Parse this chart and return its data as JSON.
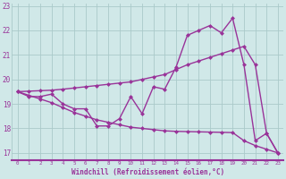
{
  "xlabel": "Windchill (Refroidissement éolien,°C)",
  "x": [
    0,
    1,
    2,
    3,
    4,
    5,
    6,
    7,
    8,
    9,
    10,
    11,
    12,
    13,
    14,
    15,
    16,
    17,
    18,
    19,
    20,
    21,
    22,
    23
  ],
  "y_actual": [
    19.5,
    19.3,
    19.3,
    19.4,
    19.0,
    18.8,
    18.8,
    18.1,
    18.1,
    18.4,
    19.3,
    18.6,
    19.7,
    19.6,
    20.5,
    21.8,
    22.0,
    22.2,
    21.9,
    22.5,
    20.6,
    17.5,
    17.8,
    17.0
  ],
  "y_upper": [
    19.5,
    19.52,
    19.54,
    19.56,
    19.6,
    19.65,
    19.7,
    19.75,
    19.8,
    19.85,
    19.9,
    20.0,
    20.1,
    20.2,
    20.4,
    20.6,
    20.75,
    20.9,
    21.05,
    21.2,
    21.35,
    20.6,
    17.8,
    17.0
  ],
  "y_lower": [
    19.5,
    19.35,
    19.2,
    19.05,
    18.85,
    18.65,
    18.5,
    18.35,
    18.25,
    18.15,
    18.05,
    18.0,
    17.95,
    17.9,
    17.88,
    17.87,
    17.86,
    17.85,
    17.84,
    17.83,
    17.5,
    17.3,
    17.15,
    17.0
  ],
  "bg_color": "#d0e8e8",
  "grid_color": "#aacaca",
  "line_color": "#993399",
  "tick_label_color": "#993399",
  "xlabel_color": "#993399",
  "ylim": [
    16.7,
    23.1
  ],
  "yticks": [
    17,
    18,
    19,
    20,
    21,
    22,
    23
  ],
  "markersize": 2.5,
  "linewidth": 1.0
}
